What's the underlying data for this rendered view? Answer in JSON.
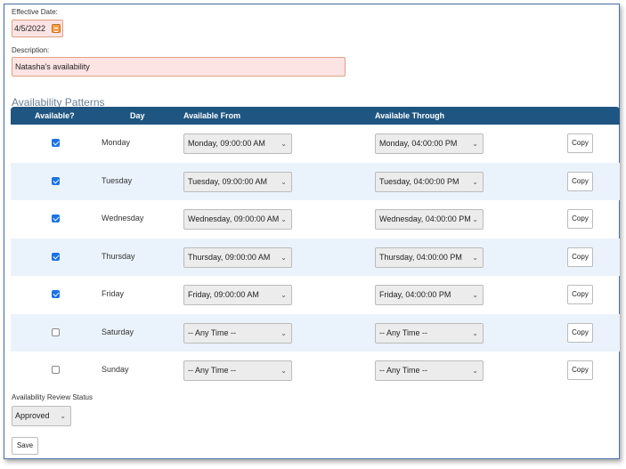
{
  "form": {
    "effective_date_label": "Effective Date:",
    "effective_date_value": "4/5/2022",
    "description_label": "Description:",
    "description_value": "Natasha's availability",
    "section_title": "Availability Patterns",
    "review_status_label": "Availability Review Status",
    "review_status_value": "Approved",
    "save_label": "Save"
  },
  "table": {
    "headers": {
      "available": "Available?",
      "day": "Day",
      "from": "Available From",
      "through": "Available Through"
    },
    "copy_label": "Copy",
    "rows": [
      {
        "checked": true,
        "day": "Monday",
        "from": "Monday, 09:00:00 AM",
        "through": "Monday, 04:00:00 PM"
      },
      {
        "checked": true,
        "day": "Tuesday",
        "from": "Tuesday, 09:00:00 AM",
        "through": "Tuesday, 04:00:00 PM"
      },
      {
        "checked": true,
        "day": "Wednesday",
        "from": "Wednesday, 09:00:00 AM",
        "through": "Wednesday, 04:00:00 PM"
      },
      {
        "checked": true,
        "day": "Thursday",
        "from": "Thursday, 09:00:00 AM",
        "through": "Thursday, 04:00:00 PM"
      },
      {
        "checked": true,
        "day": "Friday",
        "from": "Friday, 09:00:00 AM",
        "through": "Friday, 04:00:00 PM"
      },
      {
        "checked": false,
        "day": "Saturday",
        "from": "-- Any Time --",
        "through": "-- Any Time --"
      },
      {
        "checked": false,
        "day": "Sunday",
        "from": "-- Any Time --",
        "through": "-- Any Time --"
      }
    ]
  },
  "icons": {
    "calendar": "calendar-icon",
    "dropdown": "chevron-down-icon"
  },
  "colors": {
    "header_bg": "#1f5581",
    "row_alt_bg": "#eaf3fb",
    "required_field_bg": "#fde4e4",
    "checkbox_on": "#1a73e8"
  }
}
